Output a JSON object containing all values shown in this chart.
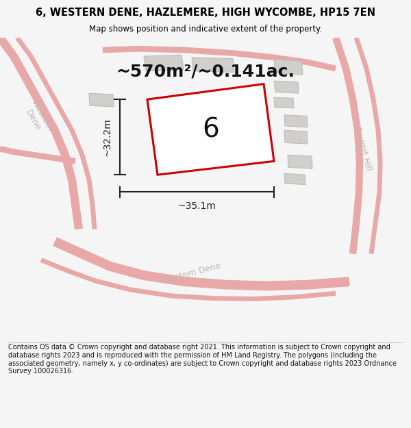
{
  "title": "6, WESTERN DENE, HAZLEMERE, HIGH WYCOMBE, HP15 7EN",
  "subtitle": "Map shows position and indicative extent of the property.",
  "area_text": "~570m²/~0.141ac.",
  "label_number": "6",
  "dim_width": "~35.1m",
  "dim_height": "~32.2m",
  "footer": "Contains OS data © Crown copyright and database right 2021. This information is subject to Crown copyright and database rights 2023 and is reproduced with the permission of HM Land Registry. The polygons (including the associated geometry, namely x, y co-ordinates) are subject to Crown copyright and database rights 2023 Ordnance Survey 100026316.",
  "bg_color": "#f5f5f5",
  "map_bg": "#eeece8",
  "road_color": "#e8a8a8",
  "road_lw": 2.5,
  "building_fill": "#d0cfcc",
  "building_outline": "#c0bfbb",
  "plot_outline_color": "#cc0000",
  "plot_fill": "#ffffff",
  "dim_line_color": "#222222",
  "road_label_color": "#c0b8b0",
  "title_color": "#000000",
  "footer_color": "#111111",
  "area_label_color": "#111111",
  "separator_color": "#cccccc"
}
